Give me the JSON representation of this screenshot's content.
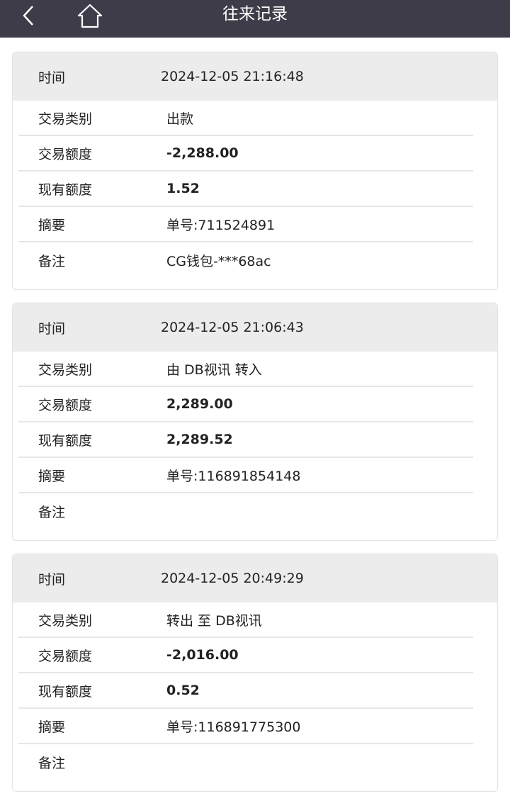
{
  "header": {
    "title": "往来记录",
    "back_icon": "chevron-left-icon",
    "home_icon": "home-icon"
  },
  "labels": {
    "time": "时间",
    "type": "交易类别",
    "amount": "交易额度",
    "balance": "现有额度",
    "summary": "摘要",
    "note": "备注"
  },
  "records": [
    {
      "time": "2024-12-05 21:16:48",
      "type": "出款",
      "amount": "-2,288.00",
      "balance": "1.52",
      "summary": "单号:711524891",
      "note": "CG钱包-***68ac"
    },
    {
      "time": "2024-12-05 21:06:43",
      "type": "由 DB视讯 转入",
      "amount": "2,289.00",
      "balance": "2,289.52",
      "summary": "单号:116891854148",
      "note": ""
    },
    {
      "time": "2024-12-05 20:49:29",
      "type": "转出 至 DB视讯",
      "amount": "-2,016.00",
      "balance": "0.52",
      "summary": "单号:116891775300",
      "note": ""
    }
  ]
}
